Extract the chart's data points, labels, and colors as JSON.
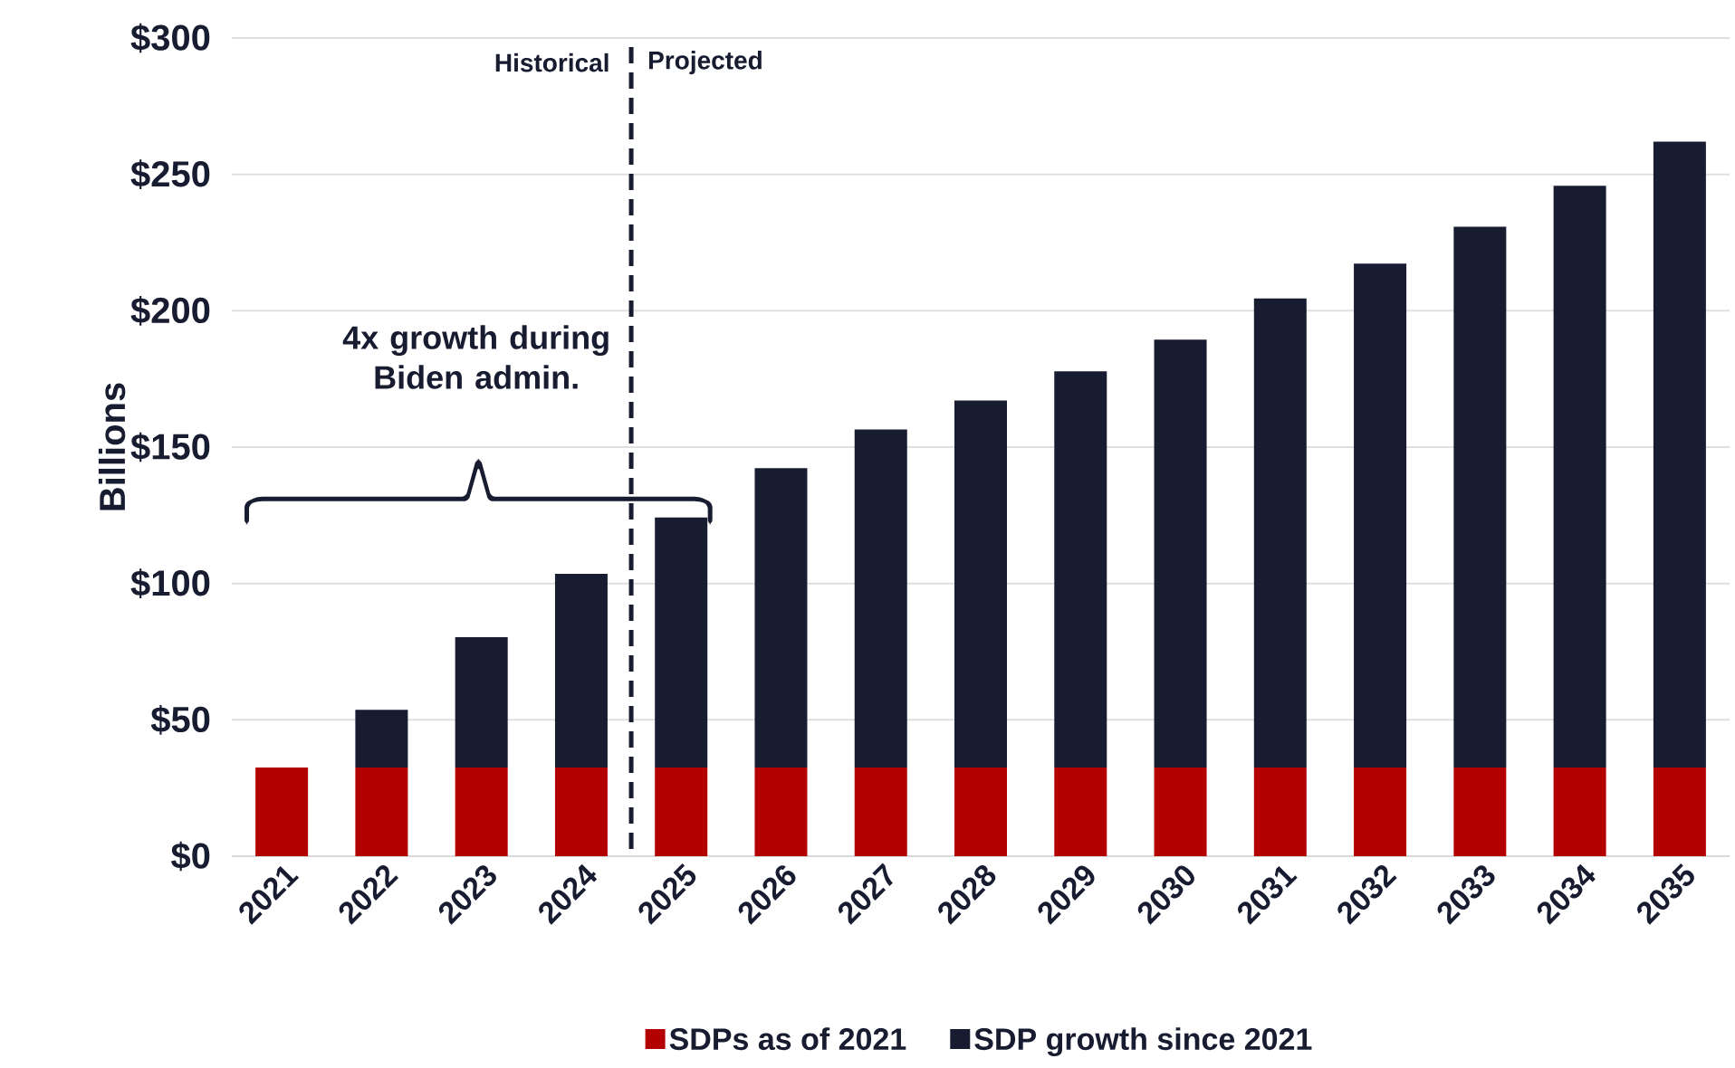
{
  "chart_data": {
    "type": "bar",
    "stacked": true,
    "categories": [
      "2021",
      "2022",
      "2023",
      "2024",
      "2025",
      "2026",
      "2027",
      "2028",
      "2029",
      "2030",
      "2031",
      "2032",
      "2033",
      "2034",
      "2035"
    ],
    "series": [
      {
        "name": "SDPs as of 2021",
        "color": "#b30000",
        "values": [
          32.5,
          32.5,
          32.5,
          32.5,
          32.5,
          32.5,
          32.5,
          32.5,
          32.5,
          32.5,
          32.5,
          32.5,
          32.5,
          32.5,
          32.5
        ]
      },
      {
        "name": "SDP growth since 2021",
        "color": "#181c30",
        "values": [
          null,
          21.2,
          47.8,
          71,
          91.7,
          109.8,
          124,
          134.6,
          145.3,
          156.9,
          172,
          184.8,
          198.3,
          213.3,
          229.5
        ]
      }
    ],
    "ylabel": "Billions",
    "ylim": [
      0,
      300
    ],
    "yticks": [
      {
        "value": 0,
        "label": "$0"
      },
      {
        "value": 50,
        "label": "$50"
      },
      {
        "value": 100,
        "label": "$100"
      },
      {
        "value": 150,
        "label": "$150"
      },
      {
        "value": 200,
        "label": "$200"
      },
      {
        "value": 250,
        "label": "$250"
      },
      {
        "value": 300,
        "label": "$300"
      }
    ],
    "grid": "y",
    "legend": "bottom",
    "annotations": [
      "Historical",
      "Projected",
      "4x growth during Biden admin."
    ]
  }
}
